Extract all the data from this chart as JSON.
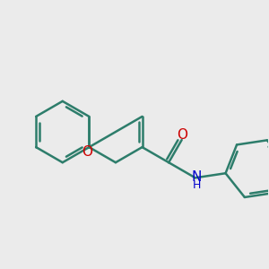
{
  "bg_color": "#ebebeb",
  "bond_color": "#2d7d6b",
  "oxygen_color": "#cc0000",
  "nitrogen_color": "#0000cc",
  "line_width": 1.8,
  "font_size": 11,
  "xlim": [
    0,
    10
  ],
  "ylim": [
    0,
    10
  ]
}
